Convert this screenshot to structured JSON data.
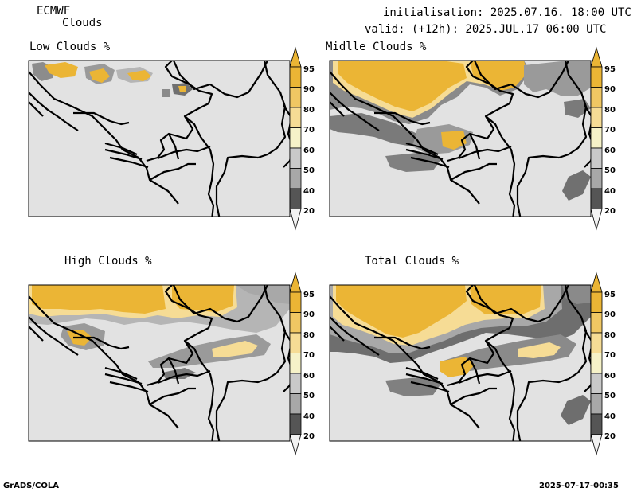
{
  "header": {
    "model": "ECMWF",
    "product": "Clouds",
    "init_line": "initialisation: 2025.07.16. 18:00 UTC",
    "valid_line": "valid: (+12h): 2025.JUL.17 06:00 UTC"
  },
  "panels": [
    {
      "title": "Low Clouds %"
    },
    {
      "title": "Midlle Clouds %"
    },
    {
      "title": "High Clouds %"
    },
    {
      "title": "Total Clouds %"
    }
  ],
  "colorbar": {
    "labels": [
      "95",
      "90",
      "80",
      "70",
      "60",
      "50",
      "40",
      "20"
    ],
    "colors": [
      "#ebb535",
      "#f0c763",
      "#f6dc95",
      "#f6f2c8",
      "#c9c9c9",
      "#a8a8a8",
      "#8a8a8a",
      "#555555"
    ],
    "low_color": "#f2f2f2"
  },
  "colors": {
    "background": "#e2e2e2",
    "border": "#000000",
    "cloud_orange": "#ebb535",
    "cloud_gray": "#6a6a6a"
  },
  "footer": {
    "left": "GrADS/COLA",
    "right": "2025-07-17-00:35"
  }
}
